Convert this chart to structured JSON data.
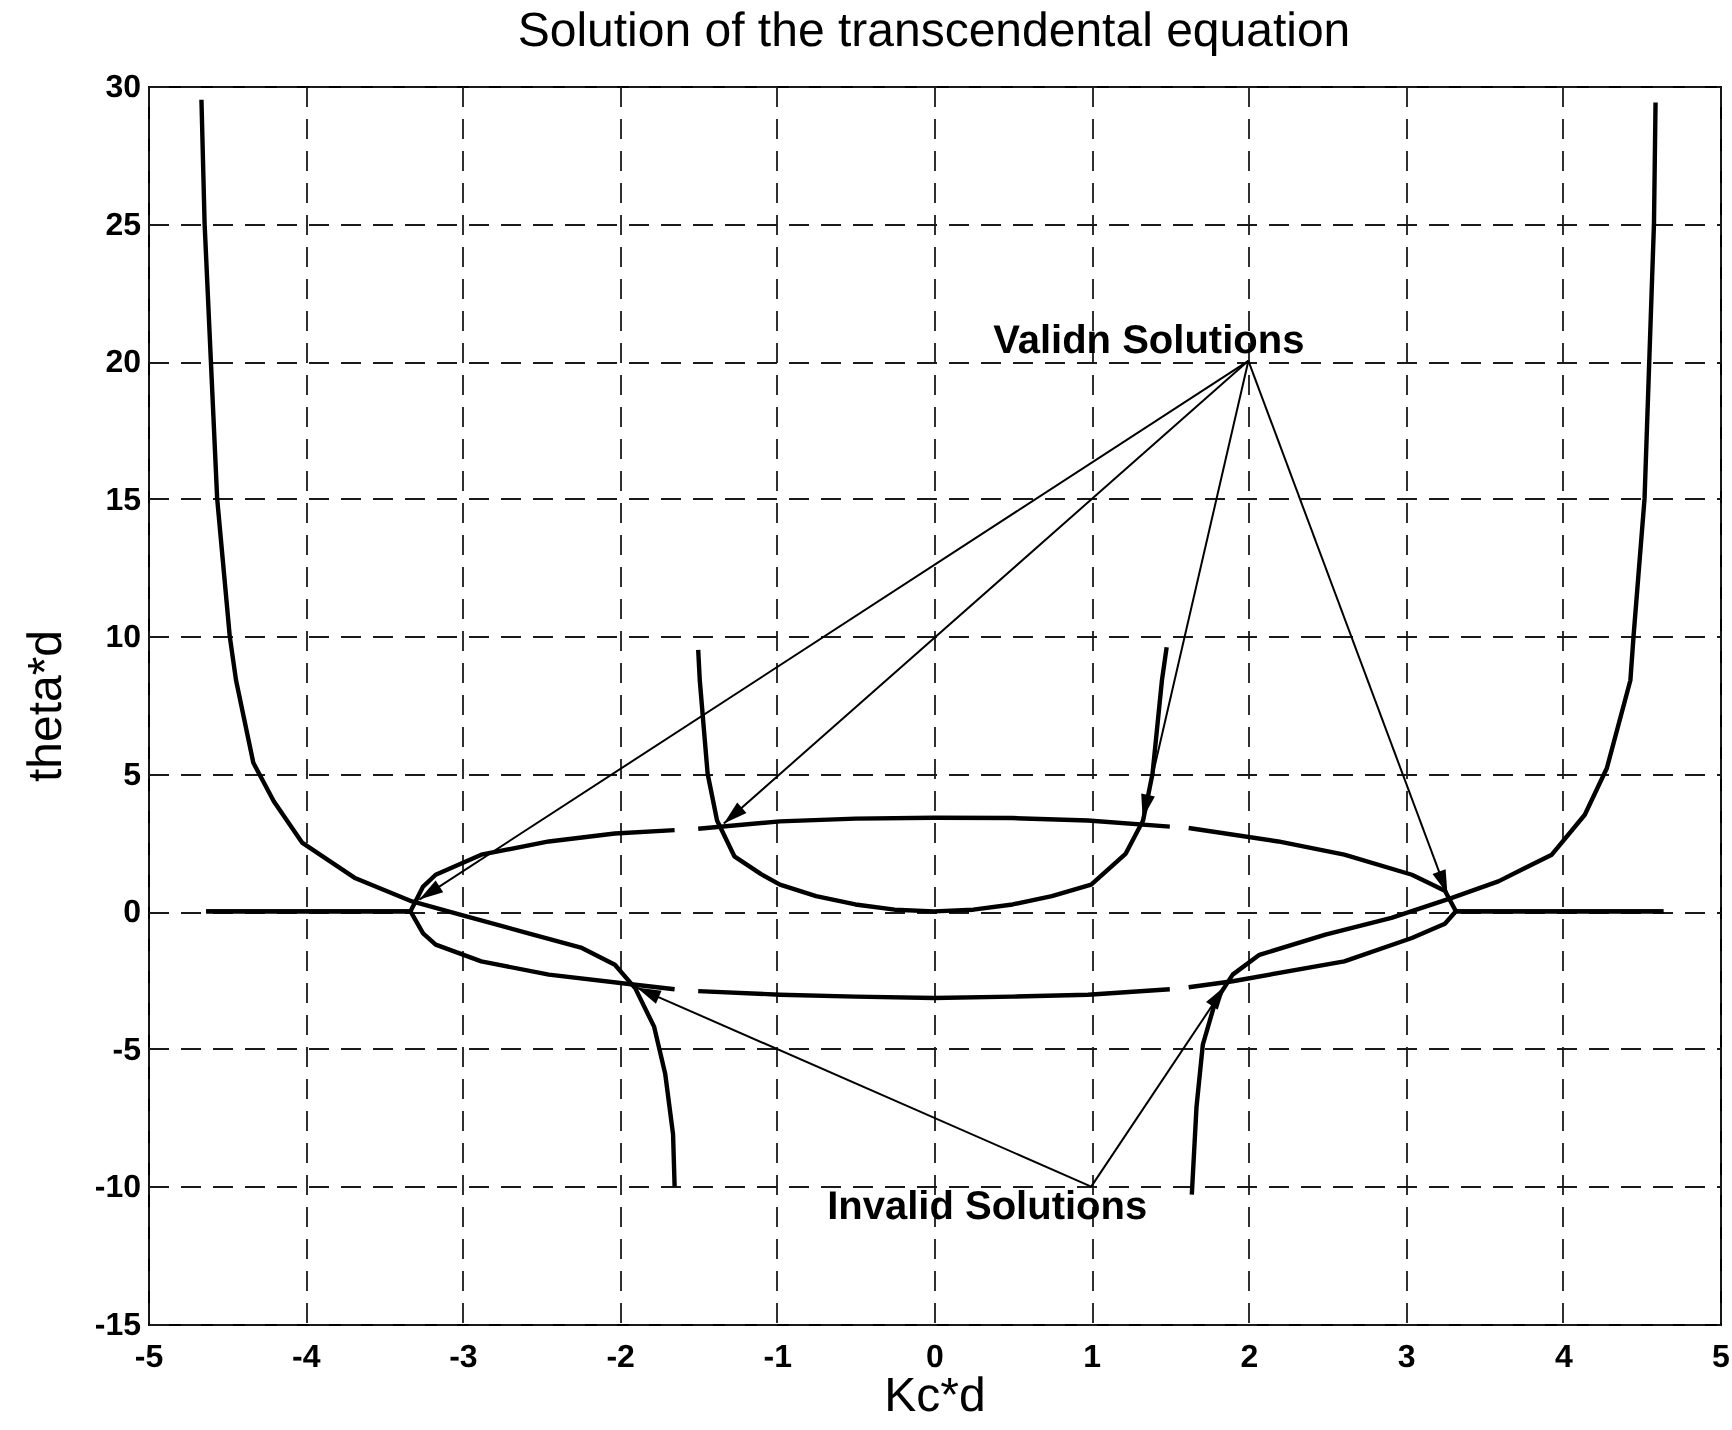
{
  "chart_data": {
    "type": "line",
    "title": "Solution of the transcendental equation",
    "xlabel": "Kc*d",
    "ylabel": "theta*d",
    "xlim": [
      -5,
      5
    ],
    "xticks": [
      -5,
      -4,
      -3,
      -2,
      -1,
      0,
      1,
      2,
      3,
      4,
      5
    ],
    "ylim": [
      -15,
      30
    ],
    "yticks": [
      -15,
      -10,
      -5,
      0,
      5,
      10,
      15,
      20,
      25,
      30
    ],
    "grid": true,
    "line_style": "solid",
    "series": [
      {
        "color": "#000000",
        "x": [
          -4.66,
          -4.64,
          -4.6,
          -4.56,
          -4.48,
          -4.44,
          -4.33,
          -4.2,
          -4.02,
          -3.68,
          -3.32,
          -2.98,
          -2.58,
          -2.24,
          -2.03,
          -1.9,
          -1.78,
          -1.71,
          -1.66,
          -1.65
        ],
        "values": [
          29.5,
          25,
          20,
          15,
          10,
          8.4,
          5.4,
          4.0,
          2.5,
          1.2,
          0.36,
          -0.17,
          -0.8,
          -1.33,
          -1.94,
          -2.8,
          -4.2,
          -5.9,
          -8.1,
          -10
        ]
      },
      {
        "color": "#000000",
        "x": [
          -1.5,
          -1.49,
          -1.44,
          -1.38,
          -1.27,
          -1.1,
          -0.98,
          -0.75,
          -0.5,
          -0.25,
          0,
          0.25,
          0.5,
          0.75,
          1.0,
          1.22,
          1.33,
          1.39,
          1.45,
          1.48
        ],
        "values": [
          9.5,
          8.4,
          5,
          3.3,
          2.0,
          1.35,
          0.97,
          0.55,
          0.25,
          0.06,
          0,
          0.06,
          0.25,
          0.55,
          0.97,
          2.1,
          3.3,
          5,
          8.4,
          9.6
        ]
      },
      {
        "color": "#000000",
        "x": [
          1.64,
          1.67,
          1.71,
          1.79,
          1.9,
          2.07,
          2.49,
          2.91,
          3.29,
          3.59,
          3.93,
          4.14,
          4.28,
          4.43,
          4.45,
          4.52,
          4.55,
          4.58,
          4.59
        ],
        "values": [
          -10.3,
          -7.1,
          -4.85,
          -3.27,
          -2.3,
          -1.58,
          -0.85,
          -0.24,
          0.48,
          1.09,
          2.06,
          3.51,
          5.2,
          8.4,
          10,
          15,
          20,
          25,
          29.4
        ]
      },
      {
        "color": "#000000",
        "x": [
          -4.63,
          -3.33,
          -3.25,
          -3.17,
          -2.88,
          -2.45,
          -2.03,
          -1.65,
          -1.57,
          -1.5,
          -0.98,
          -0.5,
          0,
          0.5,
          0.98,
          1.5,
          1.57,
          1.62,
          2.19,
          2.61,
          3.04,
          3.25,
          3.32,
          4.64
        ],
        "values": [
          0,
          0,
          0.9,
          1.33,
          2.06,
          2.54,
          2.83,
          2.95,
          null,
          3.0,
          3.27,
          3.37,
          3.4,
          3.39,
          3.3,
          3.08,
          null,
          3.03,
          2.54,
          2.06,
          1.33,
          0.75,
          0,
          0
        ]
      },
      {
        "color": "#000000",
        "x": [
          -4.63,
          -3.33,
          -3.25,
          -3.17,
          -2.88,
          -2.45,
          -1.9,
          -1.65,
          -1.57,
          -1.5,
          -0.98,
          -0.5,
          0,
          0.5,
          0.98,
          1.5,
          1.57,
          1.62,
          1.9,
          2.61,
          3.04,
          3.25,
          3.32,
          4.64
        ],
        "values": [
          0,
          0,
          -0.8,
          -1.21,
          -1.82,
          -2.3,
          -2.67,
          -2.83,
          null,
          -2.9,
          -3.03,
          -3.1,
          -3.15,
          -3.1,
          -3.03,
          -2.83,
          null,
          -2.76,
          -2.54,
          -1.82,
          -0.97,
          -0.45,
          0,
          0
        ]
      }
    ],
    "annotations": [
      {
        "text": "Validn Solutions",
        "x": 1.32,
        "y": 3.2
      },
      {
        "text": "Invalid Solutions",
        "x": -1.92,
        "y": -2.7
      }
    ]
  }
}
